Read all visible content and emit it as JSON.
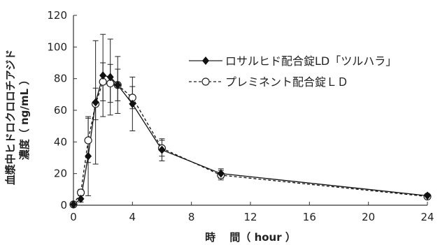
{
  "chart_data": {
    "type": "line",
    "title": "",
    "xlabel": "時　 間（ hour ）",
    "ylabel_lines": [
      "血漿中ヒドロクロロチアジド",
      "濃度（ ng/mL ）"
    ],
    "xlim": [
      0,
      24
    ],
    "ylim": [
      0,
      120
    ],
    "x_ticks": [
      "0",
      "4",
      "8",
      "12",
      "16",
      "20",
      "24"
    ],
    "y_ticks": [
      "0",
      "20",
      "40",
      "60",
      "80",
      "100",
      "120"
    ],
    "grid": false,
    "legend_position": "top-right",
    "series": [
      {
        "name": "ロサルヒド配合錠LD「ツルハラ」",
        "marker": "filled-diamond",
        "line_style": "solid",
        "color": "#111111",
        "x": [
          0,
          0.5,
          1,
          1.5,
          2,
          2.5,
          3,
          4,
          6,
          10,
          24
        ],
        "y": [
          0.5,
          4,
          31,
          65,
          82,
          81,
          76,
          64,
          35,
          20,
          6
        ],
        "error": [
          0,
          2,
          25,
          39,
          26,
          24,
          18,
          17,
          7,
          3,
          1
        ]
      },
      {
        "name": "プレミネント配合錠ＬＤ",
        "marker": "open-circle",
        "line_style": "dashed",
        "color": "#111111",
        "x": [
          0,
          0.5,
          1,
          1.5,
          2,
          2.5,
          3,
          4,
          6,
          10,
          24
        ],
        "y": [
          0.5,
          8,
          41,
          64,
          78,
          77,
          76,
          68,
          36,
          19,
          5.5
        ],
        "error": [
          0,
          2,
          14,
          10,
          12,
          12,
          10,
          7,
          5,
          3,
          1
        ]
      }
    ]
  }
}
